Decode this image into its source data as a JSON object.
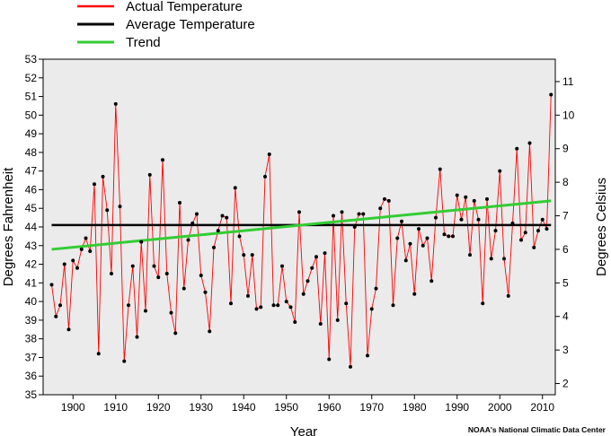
{
  "chart_data": {
    "type": "line",
    "xlabel": "Year",
    "ylabel_left": "Degrees Fahrenheit",
    "ylabel_right": "Degrees Celsius",
    "credit": "NOAA's National Climatic Data Center",
    "legend": {
      "placement": "top-left",
      "entries": [
        {
          "label": "Actual Temperature",
          "color": "#ff0000"
        },
        {
          "label": "Average Temperature",
          "color": "#000000"
        },
        {
          "label": "Trend",
          "color": "#33cc33"
        }
      ]
    },
    "xlim": [
      1893,
      2013
    ],
    "ylim_left": [
      35,
      53
    ],
    "ylim_right_ticks": [
      2,
      3,
      4,
      5,
      6,
      7,
      8,
      9,
      10,
      11
    ],
    "x_ticks": [
      1900,
      1910,
      1920,
      1930,
      1940,
      1950,
      1960,
      1970,
      1980,
      1990,
      2000,
      2010
    ],
    "y_ticks_left": [
      35,
      36,
      37,
      38,
      39,
      40,
      41,
      42,
      43,
      44,
      45,
      46,
      47,
      48,
      49,
      50,
      51,
      52,
      53
    ],
    "grid": false,
    "plot_background": "#ebebeb",
    "series": [
      {
        "name": "Actual Temperature",
        "color": "#ff0000",
        "marker_color": "#000000",
        "x": [
          1895,
          1896,
          1897,
          1898,
          1899,
          1900,
          1901,
          1902,
          1903,
          1904,
          1905,
          1906,
          1907,
          1908,
          1909,
          1910,
          1911,
          1912,
          1913,
          1914,
          1915,
          1916,
          1917,
          1918,
          1919,
          1920,
          1921,
          1922,
          1923,
          1924,
          1925,
          1926,
          1927,
          1928,
          1929,
          1930,
          1931,
          1932,
          1933,
          1934,
          1935,
          1936,
          1937,
          1938,
          1939,
          1940,
          1941,
          1942,
          1943,
          1944,
          1945,
          1946,
          1947,
          1948,
          1949,
          1950,
          1951,
          1952,
          1953,
          1954,
          1955,
          1956,
          1957,
          1958,
          1959,
          1960,
          1961,
          1962,
          1963,
          1964,
          1965,
          1966,
          1967,
          1968,
          1969,
          1970,
          1971,
          1972,
          1973,
          1974,
          1975,
          1976,
          1977,
          1978,
          1979,
          1980,
          1981,
          1982,
          1983,
          1984,
          1985,
          1986,
          1987,
          1988,
          1989,
          1990,
          1991,
          1992,
          1993,
          1994,
          1995,
          1996,
          1997,
          1998,
          1999,
          2000,
          2001,
          2002,
          2003,
          2004,
          2005,
          2006,
          2007,
          2008,
          2009,
          2010,
          2011,
          2012
        ],
        "values": [
          40.9,
          39.2,
          39.8,
          42.0,
          38.5,
          42.2,
          41.8,
          42.8,
          43.4,
          42.7,
          46.3,
          37.2,
          46.7,
          44.9,
          41.5,
          50.6,
          45.1,
          36.8,
          39.8,
          41.9,
          38.1,
          43.2,
          39.5,
          46.8,
          41.9,
          41.3,
          47.6,
          41.5,
          39.4,
          38.3,
          45.3,
          40.7,
          43.3,
          44.2,
          44.7,
          41.4,
          40.5,
          38.4,
          42.9,
          43.8,
          44.6,
          44.5,
          39.9,
          46.1,
          43.5,
          42.5,
          40.3,
          42.5,
          39.6,
          39.7,
          46.7,
          47.9,
          39.8,
          39.8,
          41.9,
          40.0,
          39.7,
          38.9,
          44.8,
          40.4,
          41.1,
          41.8,
          42.4,
          38.8,
          42.6,
          36.9,
          44.6,
          39.0,
          44.8,
          39.9,
          36.5,
          44.0,
          44.7,
          44.7,
          37.1,
          39.6,
          40.7,
          45.0,
          45.5,
          45.4,
          39.8,
          43.4,
          44.3,
          42.2,
          43.1,
          40.4,
          43.9,
          43.0,
          43.4,
          41.1,
          44.5,
          47.1,
          43.6,
          43.5,
          43.5,
          45.7,
          44.4,
          45.6,
          42.5,
          45.4,
          44.4,
          39.9,
          45.5,
          42.3,
          43.8,
          47.0,
          42.3,
          40.3,
          44.2,
          48.2,
          43.3,
          43.7,
          48.5,
          42.9,
          43.8,
          44.4,
          43.9,
          51.1
        ]
      },
      {
        "name": "Average Temperature",
        "color": "#000000",
        "x": [
          1895,
          2012
        ],
        "values": [
          44.1,
          44.1
        ]
      },
      {
        "name": "Trend",
        "color": "#33cc33",
        "x": [
          1895,
          2012
        ],
        "values": [
          42.8,
          45.4
        ]
      }
    ]
  }
}
